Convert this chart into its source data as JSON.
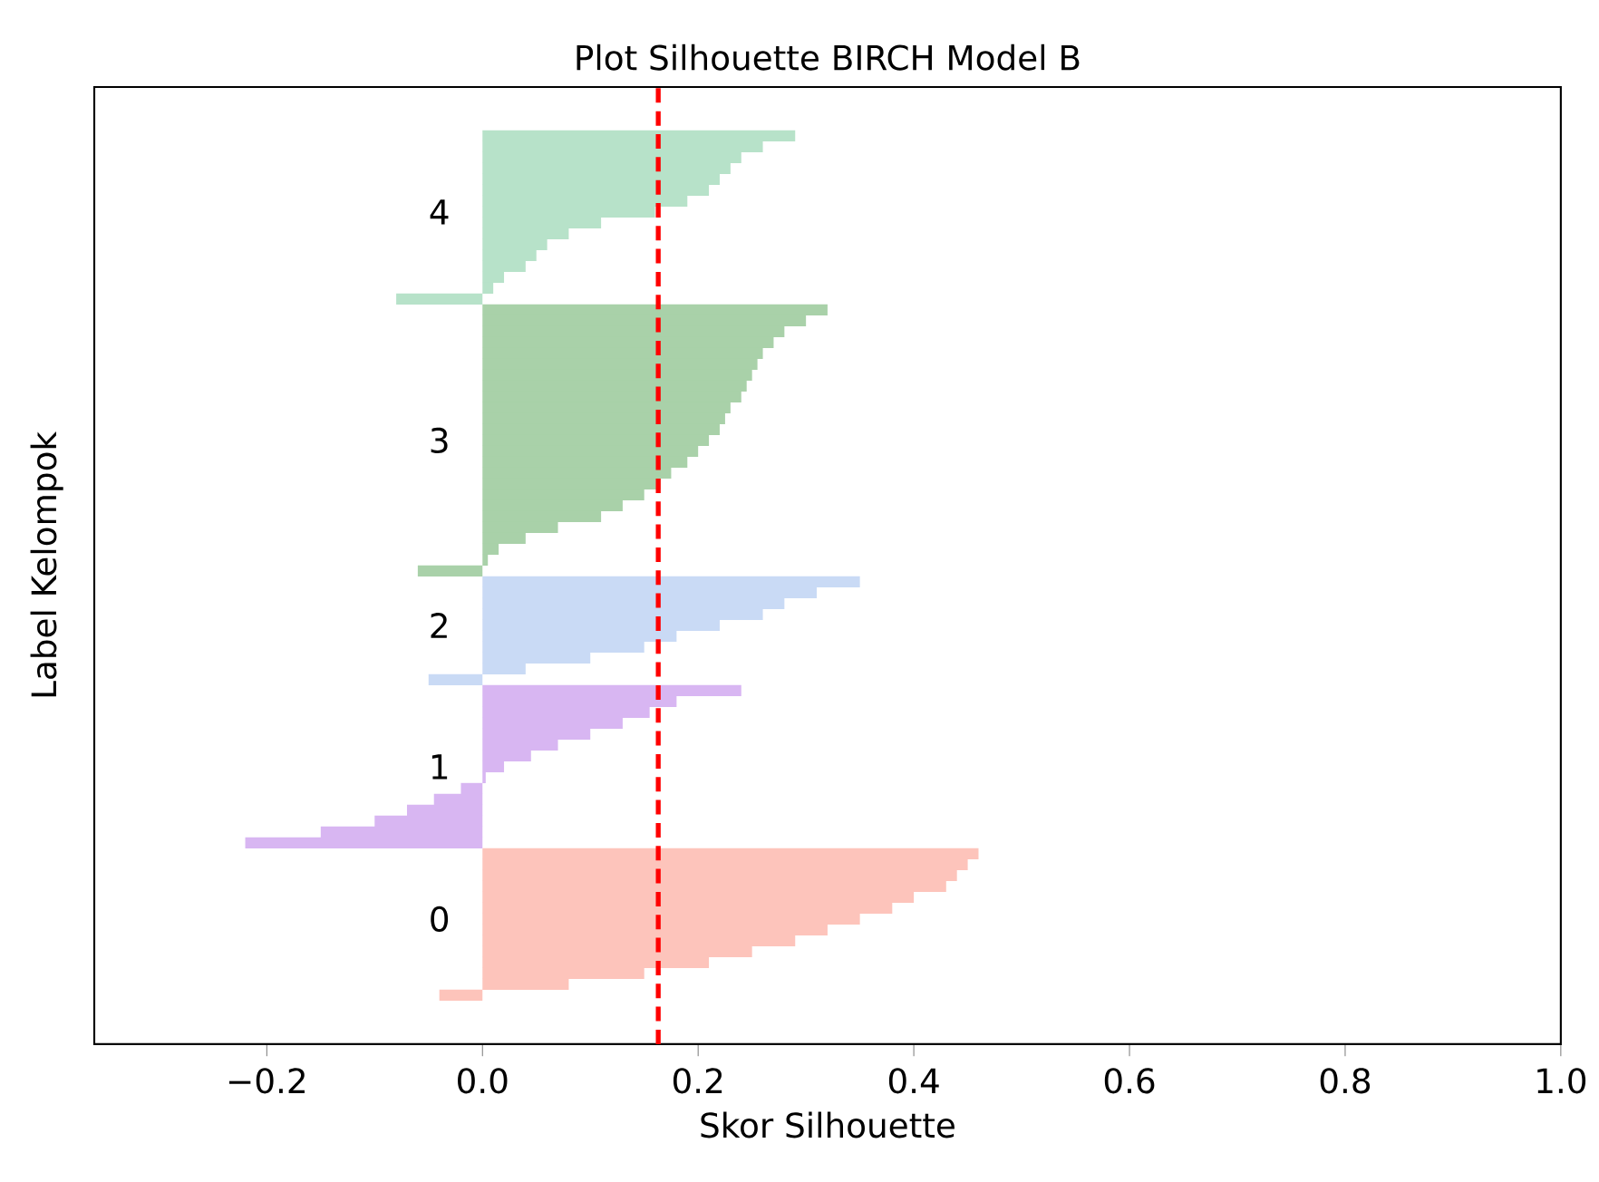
{
  "chart_data": {
    "type": "bar",
    "orientation": "horizontal",
    "title": "Plot Silhouette BIRCH Model B",
    "xlabel": "Skor Silhouette",
    "ylabel": "Label Kelompok",
    "categories": [
      null,
      null,
      null,
      null,
      null,
      null,
      null,
      null,
      null,
      null,
      null,
      "4",
      null,
      null,
      null,
      null,
      null,
      null,
      null,
      null,
      null,
      null,
      null,
      null,
      null,
      null,
      null,
      null,
      null,
      null,
      null,
      null,
      "3",
      null,
      null,
      null,
      null,
      null,
      null,
      null,
      null,
      null,
      null,
      null,
      null,
      null,
      null,
      null,
      null,
      "2",
      null,
      null,
      null,
      null,
      null,
      null,
      null,
      null,
      null,
      null,
      null,
      null,
      "1",
      null,
      null,
      null,
      null,
      null,
      null,
      null,
      null,
      null,
      null,
      null,
      null,
      null,
      "0",
      null,
      null,
      null,
      null,
      null,
      null,
      null,
      null,
      null,
      null,
      null
    ],
    "values": [
      null,
      null,
      null,
      null,
      0.29,
      0.26,
      0.24,
      0.23,
      0.22,
      0.21,
      0.19,
      0.16,
      0.11,
      0.08,
      0.06,
      0.05,
      0.04,
      0.02,
      0.01,
      -0.08,
      0.32,
      0.3,
      0.28,
      0.27,
      0.26,
      0.255,
      0.25,
      0.245,
      0.24,
      0.23,
      0.225,
      0.22,
      0.21,
      0.2,
      0.19,
      0.175,
      0.165,
      0.15,
      0.13,
      0.11,
      0.07,
      0.04,
      0.015,
      0.005,
      -0.06,
      0.35,
      0.31,
      0.28,
      0.26,
      0.22,
      0.18,
      0.15,
      0.1,
      0.04,
      -0.05,
      0.24,
      0.18,
      0.155,
      0.13,
      0.1,
      0.07,
      0.045,
      0.02,
      0.003,
      -0.02,
      -0.045,
      -0.07,
      -0.1,
      -0.15,
      -0.22,
      0.46,
      0.45,
      0.44,
      0.43,
      0.4,
      0.38,
      0.35,
      0.32,
      0.29,
      0.25,
      0.21,
      0.15,
      0.08,
      -0.04,
      null,
      null,
      null,
      null
    ],
    "colors": [
      null,
      null,
      null,
      null,
      "#b7e2c9",
      "#b7e2c9",
      "#b7e2c9",
      "#b7e2c9",
      "#b7e2c9",
      "#b7e2c9",
      "#b7e2c9",
      "#b7e2c9",
      "#b7e2c9",
      "#b7e2c9",
      "#b7e2c9",
      "#b7e2c9",
      "#b7e2c9",
      "#b7e2c9",
      "#b7e2c9",
      "#b7e2c9",
      "#a9d1a9",
      "#a9d1a9",
      "#a9d1a9",
      "#a9d1a9",
      "#a9d1a9",
      "#a9d1a9",
      "#a9d1a9",
      "#a9d1a9",
      "#a9d1a9",
      "#a9d1a9",
      "#a9d1a9",
      "#a9d1a9",
      "#a9d1a9",
      "#a9d1a9",
      "#a9d1a9",
      "#a9d1a9",
      "#a9d1a9",
      "#a9d1a9",
      "#a9d1a9",
      "#a9d1a9",
      "#a9d1a9",
      "#a9d1a9",
      "#a9d1a9",
      "#a9d1a9",
      "#a9d1a9",
      "#c9daf5",
      "#c9daf5",
      "#c9daf5",
      "#c9daf5",
      "#c9daf5",
      "#c9daf5",
      "#c9daf5",
      "#c9daf5",
      "#c9daf5",
      "#c9daf5",
      "#d8b6f2",
      "#d8b6f2",
      "#d8b6f2",
      "#d8b6f2",
      "#d8b6f2",
      "#d8b6f2",
      "#d8b6f2",
      "#d8b6f2",
      "#d8b6f2",
      "#d8b6f2",
      "#d8b6f2",
      "#d8b6f2",
      "#d8b6f2",
      "#d8b6f2",
      "#d8b6f2",
      "#fdc4bb",
      "#fdc4bb",
      "#fdc4bb",
      "#fdc4bb",
      "#fdc4bb",
      "#fdc4bb",
      "#fdc4bb",
      "#fdc4bb",
      "#fdc4bb",
      "#fdc4bb",
      "#fdc4bb",
      "#fdc4bb",
      "#fdc4bb",
      "#fdc4bb",
      null,
      null,
      null,
      null
    ],
    "xlim": [
      -0.36,
      1.0
    ],
    "xticks": [
      {
        "value": -0.2,
        "label": "−0.2"
      },
      {
        "value": 0.0,
        "label": "0.0"
      },
      {
        "value": 0.2,
        "label": "0.2"
      },
      {
        "value": 0.4,
        "label": "0.4"
      },
      {
        "value": 0.6,
        "label": "0.6"
      },
      {
        "value": 0.8,
        "label": "0.8"
      },
      {
        "value": 1.0,
        "label": "1.0"
      }
    ],
    "ref_lines": [
      {
        "axis": "x",
        "value": 0.163,
        "color": "#ff0000",
        "line_style": "dashed"
      }
    ]
  }
}
